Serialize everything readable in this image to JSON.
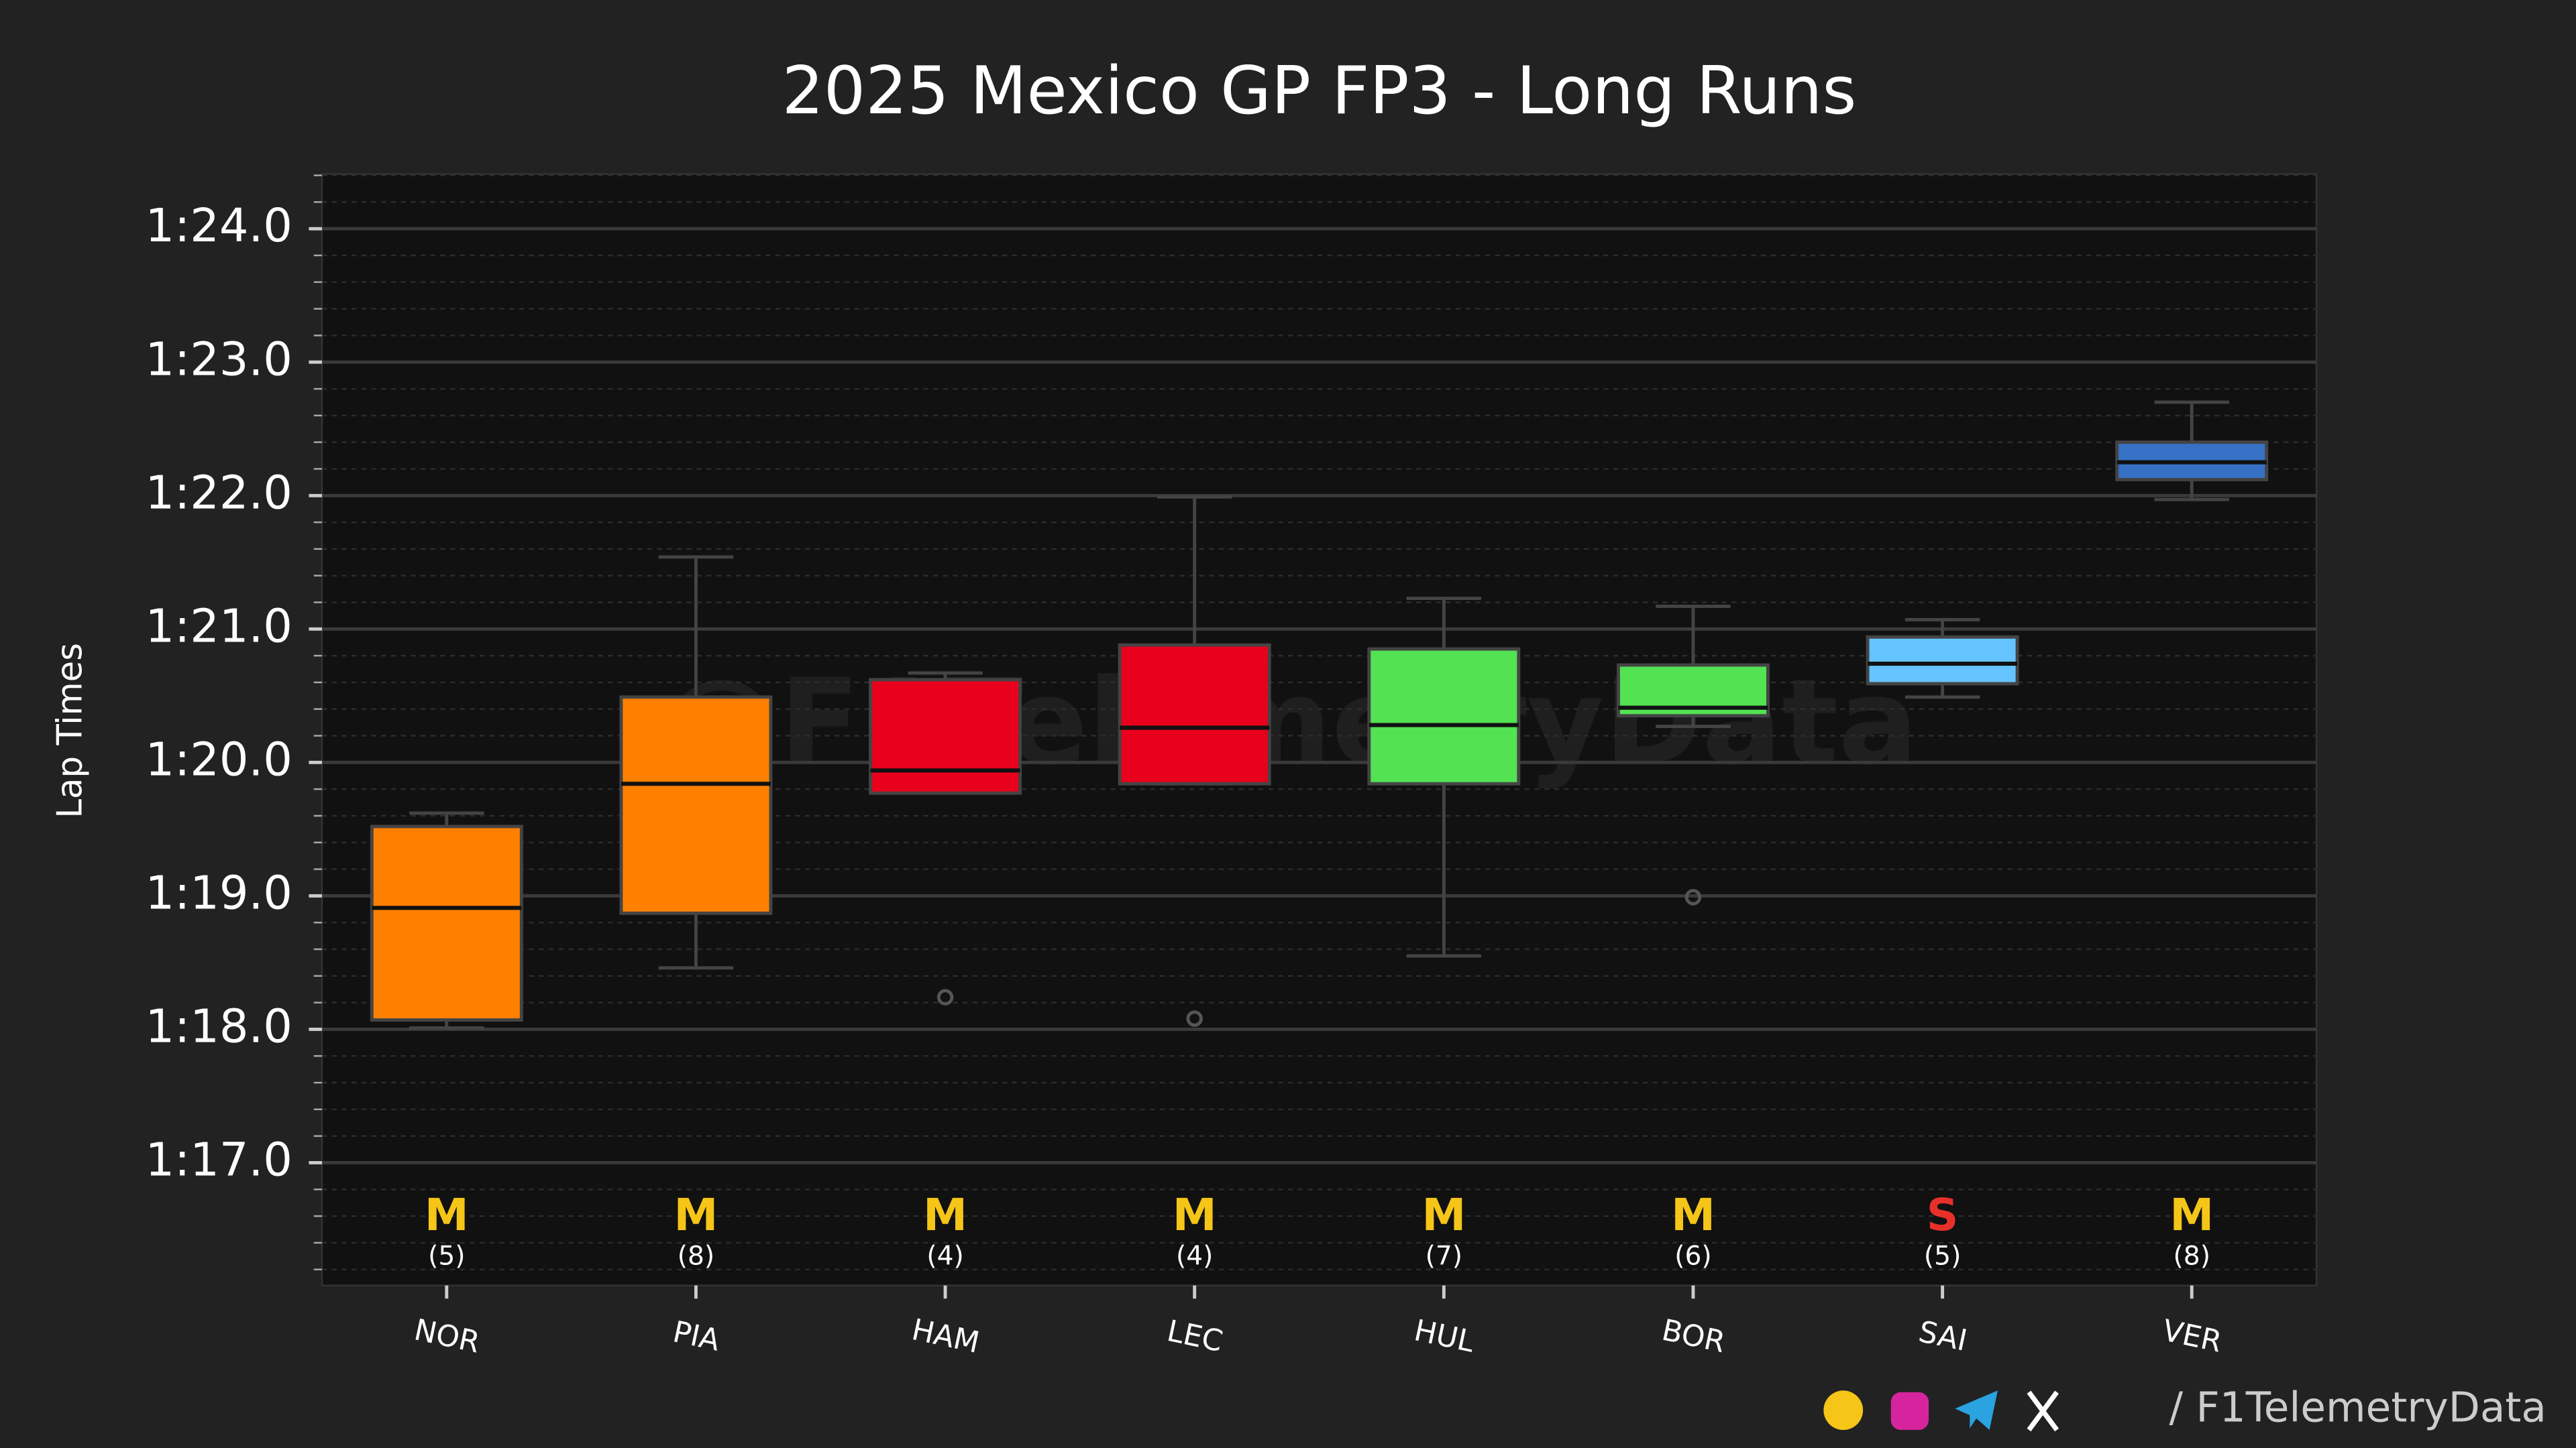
{
  "chart_data": {
    "type": "box",
    "title": "2025 Mexico GP FP3 - Long Runs",
    "ylabel": "Lap Times",
    "watermark": "@F1TelemetryData",
    "credit": "/ F1TelemetryData",
    "categories": [
      "NOR",
      "PIA",
      "HAM",
      "LEC",
      "HUL",
      "BOR",
      "SAI",
      "VER"
    ],
    "boxes": [
      {
        "whisker_low": 78.01,
        "q1": 78.07,
        "median": 78.91,
        "q3": 79.52,
        "whisker_high": 79.62,
        "outliers": [],
        "color": "#ff8000"
      },
      {
        "whisker_low": 78.46,
        "q1": 78.87,
        "median": 79.84,
        "q3": 80.49,
        "whisker_high": 81.54,
        "outliers": [],
        "color": "#ff8000"
      },
      {
        "whisker_low": 79.77,
        "q1": 79.77,
        "median": 79.94,
        "q3": 80.62,
        "whisker_high": 80.67,
        "outliers": [
          78.24
        ],
        "color": "#e8001d"
      },
      {
        "whisker_low": 79.84,
        "q1": 79.84,
        "median": 80.26,
        "q3": 80.88,
        "whisker_high": 81.99,
        "outliers": [
          78.08
        ],
        "color": "#e8001d"
      },
      {
        "whisker_low": 78.55,
        "q1": 79.84,
        "median": 80.28,
        "q3": 80.85,
        "whisker_high": 81.23,
        "outliers": [],
        "color": "#52e252"
      },
      {
        "whisker_low": 80.27,
        "q1": 80.35,
        "median": 80.41,
        "q3": 80.73,
        "whisker_high": 81.17,
        "outliers": [
          78.99
        ],
        "color": "#52e252"
      },
      {
        "whisker_low": 80.49,
        "q1": 80.59,
        "median": 80.74,
        "q3": 80.94,
        "whisker_high": 81.07,
        "outliers": [],
        "color": "#64c4ff"
      },
      {
        "whisker_low": 81.97,
        "q1": 82.12,
        "median": 82.25,
        "q3": 82.4,
        "whisker_high": 82.7,
        "outliers": [],
        "color": "#3671c6"
      }
    ],
    "compounds": [
      "M",
      "M",
      "M",
      "M",
      "M",
      "M",
      "S",
      "M"
    ],
    "compound_colors": [
      "#f5c518",
      "#f5c518",
      "#f5c518",
      "#f5c518",
      "#f5c518",
      "#f5c518",
      "#e8302a",
      "#f5c518"
    ],
    "lap_counts": [
      "(5)",
      "(8)",
      "(4)",
      "(4)",
      "(7)",
      "(6)",
      "(5)",
      "(8)"
    ],
    "ylim": [
      76.08,
      84.41
    ],
    "yticks": [
      {
        "value": 77,
        "label": "1:17.0"
      },
      {
        "value": 78,
        "label": "1:18.0"
      },
      {
        "value": 79,
        "label": "1:19.0"
      },
      {
        "value": 80,
        "label": "1:20.0"
      },
      {
        "value": 81,
        "label": "1:21.0"
      },
      {
        "value": 82,
        "label": "1:22.0"
      },
      {
        "value": 83,
        "label": "1:23.0"
      },
      {
        "value": 84,
        "label": "1:24.0"
      }
    ],
    "grid": true,
    "minor_grid": true
  }
}
